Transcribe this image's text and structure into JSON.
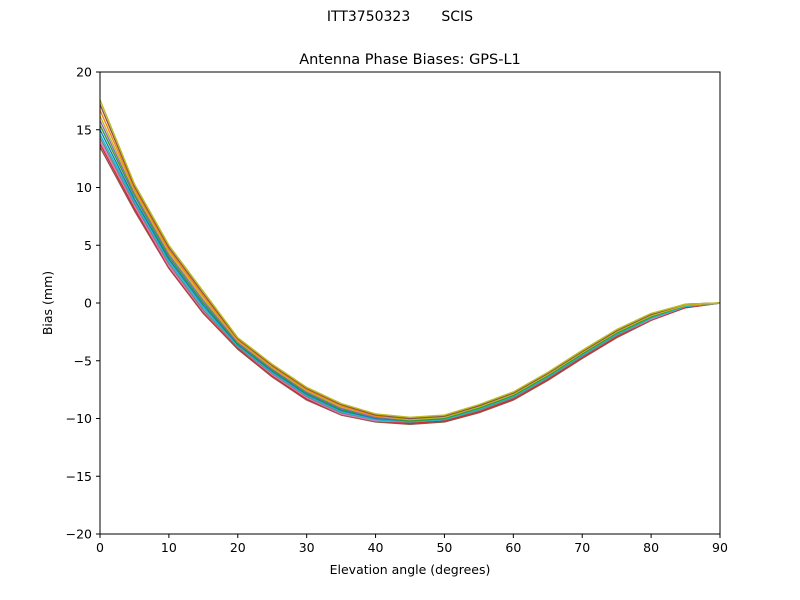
{
  "figure": {
    "suptitle": "ITT3750323       SCIS"
  },
  "chart_data": {
    "type": "line",
    "title": "Antenna Phase Biases: GPS-L1",
    "xlabel": "Elevation angle (degrees)",
    "ylabel": "Bias (mm)",
    "xlim": [
      0,
      90
    ],
    "ylim": [
      -20,
      20
    ],
    "xticks": [
      0,
      10,
      20,
      30,
      40,
      50,
      60,
      70,
      80,
      90
    ],
    "yticks": [
      -20,
      -15,
      -10,
      -5,
      0,
      5,
      10,
      15,
      20
    ],
    "xtick_labels": [
      "0",
      "10",
      "20",
      "30",
      "40",
      "50",
      "60",
      "70",
      "80",
      "90"
    ],
    "ytick_labels": [
      "−20",
      "−15",
      "−10",
      "−5",
      "0",
      "5",
      "10",
      "15",
      "20"
    ],
    "grid": false,
    "legend": false,
    "x": [
      0,
      5,
      10,
      15,
      20,
      25,
      30,
      35,
      40,
      45,
      50,
      55,
      60,
      65,
      70,
      75,
      80,
      85,
      90
    ],
    "series": [
      {
        "color": "#8c564b",
        "values": [
          13.5,
          8.0,
          3.0,
          -0.9,
          -4.0,
          -6.4,
          -8.4,
          -9.7,
          -10.3,
          -10.5,
          -10.3,
          -9.5,
          -8.4,
          -6.7,
          -4.8,
          -3.0,
          -1.5,
          -0.4,
          0.0
        ]
      },
      {
        "color": "#d62728",
        "values": [
          13.8,
          8.2,
          3.1,
          -0.8,
          -3.9,
          -6.3,
          -8.3,
          -9.6,
          -10.2,
          -10.4,
          -10.2,
          -9.4,
          -8.3,
          -6.6,
          -4.7,
          -2.9,
          -1.4,
          -0.4,
          0.0
        ]
      },
      {
        "color": "#e377c2",
        "values": [
          14.0,
          8.4,
          3.2,
          -0.7,
          -3.8,
          -6.2,
          -8.2,
          -9.6,
          -10.2,
          -10.3,
          -10.1,
          -9.3,
          -8.2,
          -6.5,
          -4.6,
          -2.8,
          -1.4,
          -0.3,
          0.0
        ]
      },
      {
        "color": "#7f7f7f",
        "values": [
          14.3,
          8.6,
          3.4,
          -0.6,
          -3.8,
          -6.1,
          -8.1,
          -9.5,
          -10.1,
          -10.3,
          -10.1,
          -9.3,
          -8.2,
          -6.5,
          -4.6,
          -2.8,
          -1.3,
          -0.3,
          0.0
        ]
      },
      {
        "color": "#17becf",
        "values": [
          14.6,
          8.8,
          3.6,
          -0.4,
          -3.7,
          -6.0,
          -8.0,
          -9.4,
          -10.1,
          -10.3,
          -10.1,
          -9.2,
          -8.1,
          -6.4,
          -4.5,
          -2.7,
          -1.3,
          -0.3,
          0.0
        ]
      },
      {
        "color": "#1f77b4",
        "values": [
          15.0,
          9.0,
          3.8,
          -0.2,
          -3.6,
          -5.9,
          -7.9,
          -9.3,
          -10.0,
          -10.2,
          -10.0,
          -9.1,
          -8.0,
          -6.3,
          -4.4,
          -2.6,
          -1.2,
          -0.2,
          0.0
        ]
      },
      {
        "color": "#2ca02c",
        "values": [
          15.4,
          9.3,
          4.0,
          0.0,
          -3.5,
          -5.8,
          -7.8,
          -9.2,
          -9.9,
          -10.2,
          -10.0,
          -9.1,
          -8.0,
          -6.3,
          -4.4,
          -2.6,
          -1.2,
          -0.2,
          0.0
        ]
      },
      {
        "color": "#9467bd",
        "values": [
          15.8,
          9.5,
          4.2,
          0.2,
          -3.4,
          -5.7,
          -7.7,
          -9.1,
          -9.9,
          -10.1,
          -9.9,
          -9.0,
          -7.9,
          -6.2,
          -4.3,
          -2.5,
          -1.1,
          -0.2,
          0.0
        ]
      },
      {
        "color": "#bcbd22",
        "values": [
          16.2,
          9.7,
          4.4,
          0.4,
          -3.3,
          -5.6,
          -7.6,
          -9.0,
          -9.8,
          -10.1,
          -9.9,
          -9.0,
          -7.9,
          -6.2,
          -4.3,
          -2.5,
          -1.1,
          -0.2,
          0.0
        ]
      },
      {
        "color": "#ff7f0e",
        "values": [
          16.7,
          9.9,
          4.6,
          0.6,
          -3.2,
          -5.5,
          -7.5,
          -8.9,
          -9.8,
          -10.0,
          -9.8,
          -8.9,
          -7.8,
          -6.1,
          -4.2,
          -2.4,
          -1.0,
          -0.1,
          0.0
        ]
      },
      {
        "color": "#8c564b",
        "values": [
          17.2,
          10.1,
          4.8,
          0.8,
          -3.1,
          -5.4,
          -7.4,
          -8.8,
          -9.7,
          -10.0,
          -9.8,
          -8.9,
          -7.8,
          -6.1,
          -4.2,
          -2.4,
          -1.0,
          -0.1,
          0.0
        ]
      },
      {
        "color": "#bcbd22",
        "values": [
          17.6,
          10.3,
          5.0,
          1.0,
          -3.0,
          -5.3,
          -7.3,
          -8.7,
          -9.6,
          -9.9,
          -9.7,
          -8.8,
          -7.7,
          -6.0,
          -4.1,
          -2.3,
          -0.9,
          -0.1,
          0.0
        ]
      }
    ]
  }
}
